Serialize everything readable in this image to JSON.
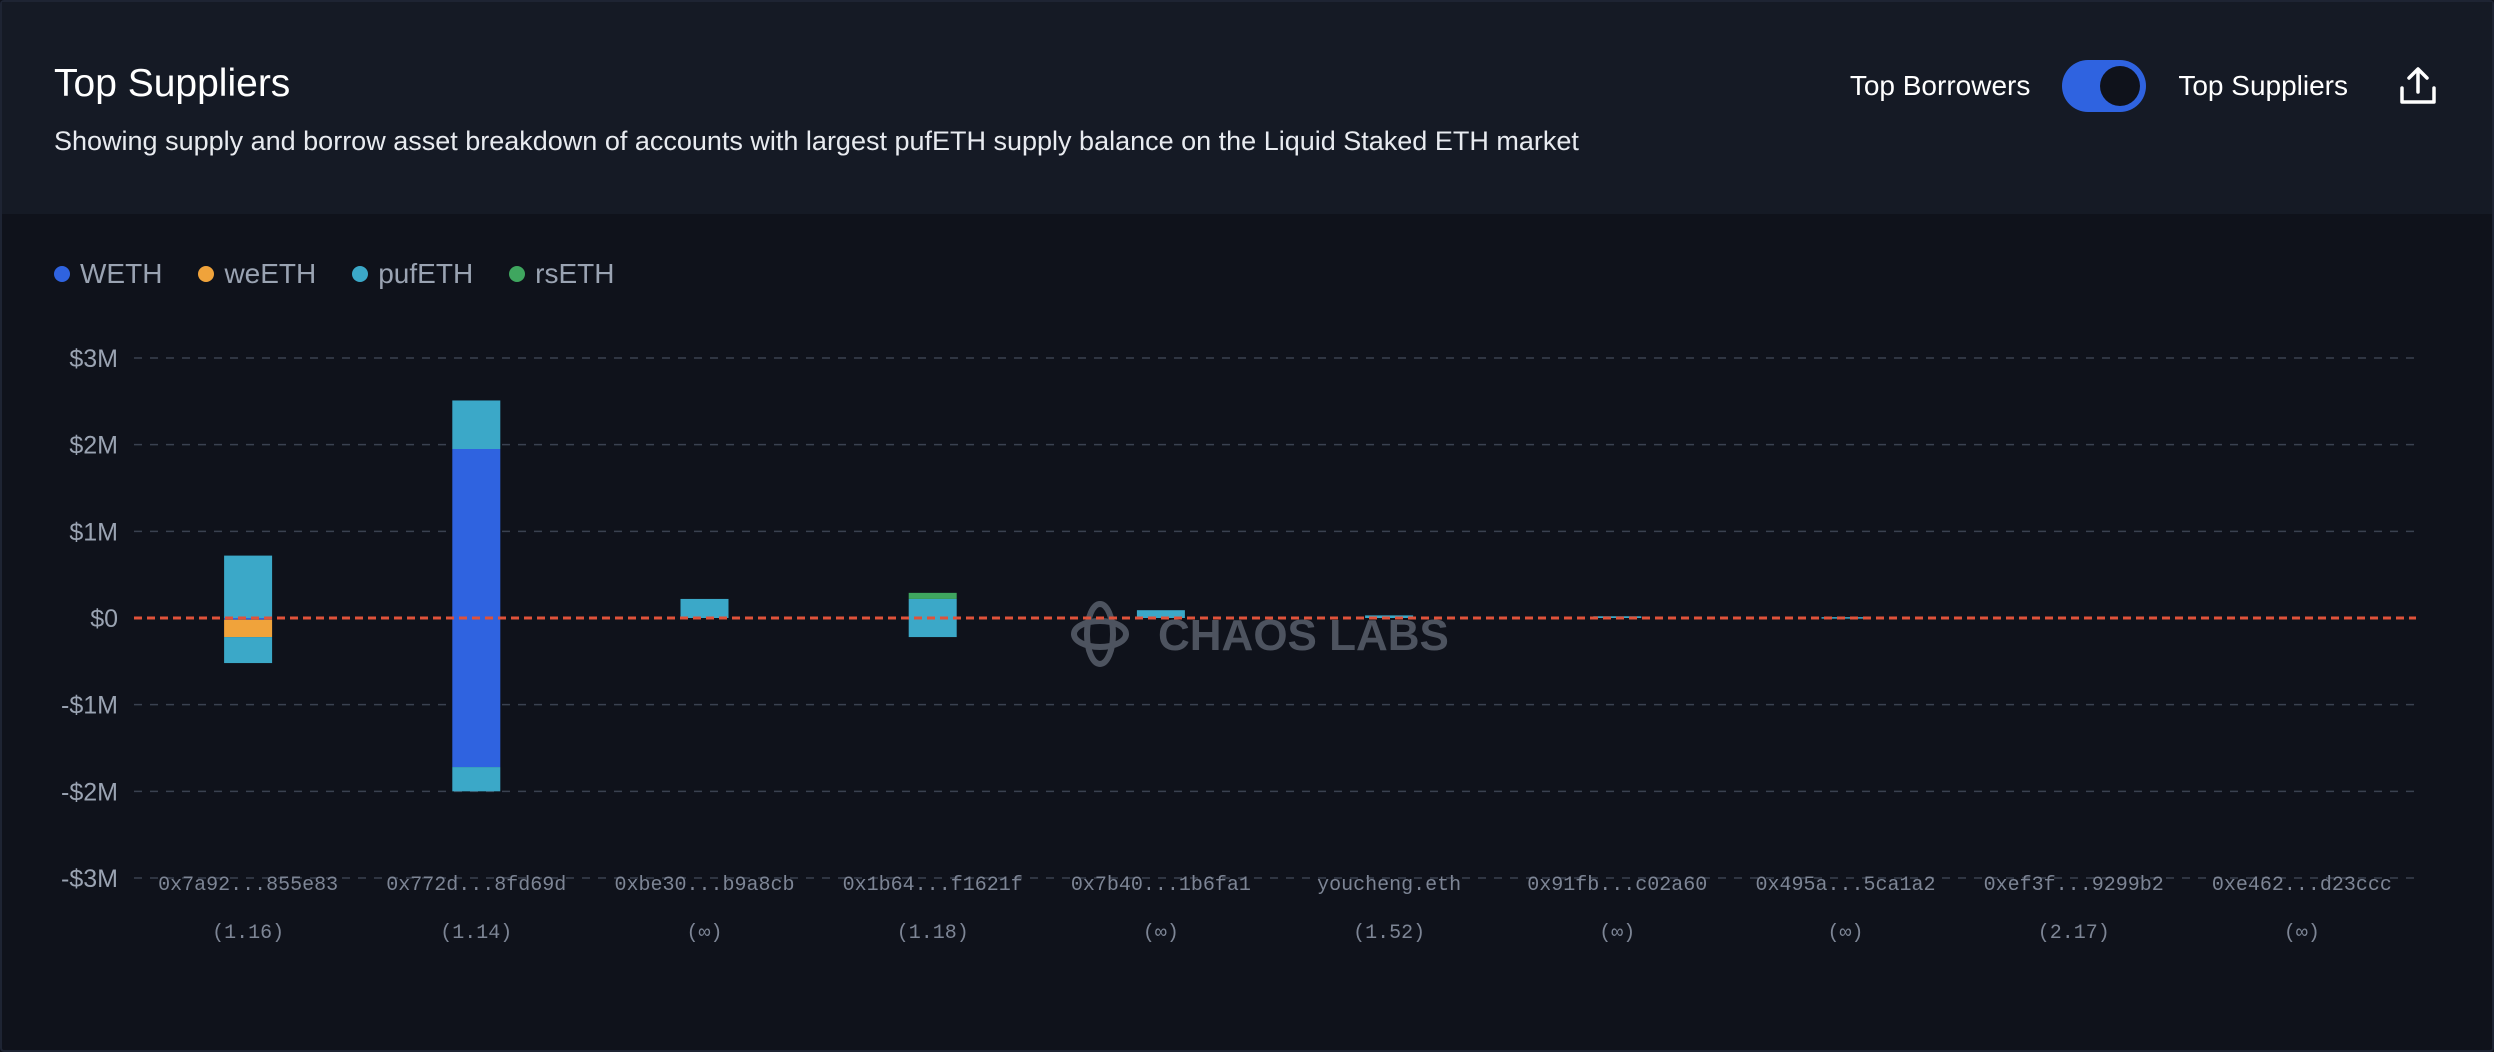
{
  "header": {
    "title": "Top Suppliers",
    "subtitle": "Showing supply and borrow asset breakdown of accounts with largest pufETH supply balance on the Liquid Staked ETH market",
    "toggle_left": "Top Borrowers",
    "toggle_right": "Top Suppliers",
    "toggle_state": "Top Suppliers"
  },
  "watermark": "CHAOS LABS",
  "colors": {
    "WETH": "#2f63e0",
    "weETH": "#f0a33b",
    "pufETH": "#3ba8c8",
    "rsETH": "#3fa65f",
    "zero_line": "#e0523a"
  },
  "chart_data": {
    "type": "bar",
    "stacked": true,
    "ylim": [
      -3000000,
      3000000
    ],
    "yticks": [
      {
        "value": 3000000,
        "label": "$3M"
      },
      {
        "value": 2000000,
        "label": "$2M"
      },
      {
        "value": 1000000,
        "label": "$1M"
      },
      {
        "value": 0,
        "label": "$0"
      },
      {
        "value": -1000000,
        "label": "-$1M"
      },
      {
        "value": -2000000,
        "label": "-$2M"
      },
      {
        "value": -3000000,
        "label": "-$3M"
      }
    ],
    "grid": true,
    "legend_position": "top-left",
    "categories": [
      "0x7a92...855e83",
      "0x772d...8fd69d",
      "0xbe30...b9a8cb",
      "0x1b64...f1621f",
      "0x7b40...1b6fa1",
      "youcheng.eth",
      "0x91fb...c02a60",
      "0x495a...5ca1a2",
      "0xef3f...9299b2",
      "0xe462...d23ccc"
    ],
    "health_factors": [
      "(1.16)",
      "(1.14)",
      "(∞)",
      "(1.18)",
      "(∞)",
      "(1.52)",
      "(∞)",
      "(∞)",
      "(2.17)",
      "(∞)"
    ],
    "series": [
      {
        "name": "WETH",
        "supply": [
          0,
          1950000,
          0,
          0,
          0,
          0,
          0,
          0,
          0,
          0
        ],
        "borrow": [
          -20000,
          -1720000,
          0,
          0,
          0,
          0,
          0,
          0,
          0,
          0
        ]
      },
      {
        "name": "weETH",
        "supply": [
          0,
          0,
          0,
          0,
          0,
          0,
          0,
          0,
          0,
          0
        ],
        "borrow": [
          -200000,
          0,
          0,
          0,
          0,
          0,
          0,
          0,
          0,
          0
        ]
      },
      {
        "name": "pufETH",
        "supply": [
          720000,
          560000,
          220000,
          220000,
          90000,
          30000,
          20000,
          10000,
          0,
          0
        ],
        "borrow": [
          -300000,
          -280000,
          0,
          -220000,
          0,
          0,
          0,
          0,
          0,
          0
        ]
      },
      {
        "name": "rsETH",
        "supply": [
          0,
          0,
          0,
          70000,
          0,
          0,
          0,
          0,
          0,
          0
        ],
        "borrow": [
          0,
          0,
          0,
          0,
          0,
          0,
          0,
          0,
          0,
          0
        ]
      }
    ]
  }
}
